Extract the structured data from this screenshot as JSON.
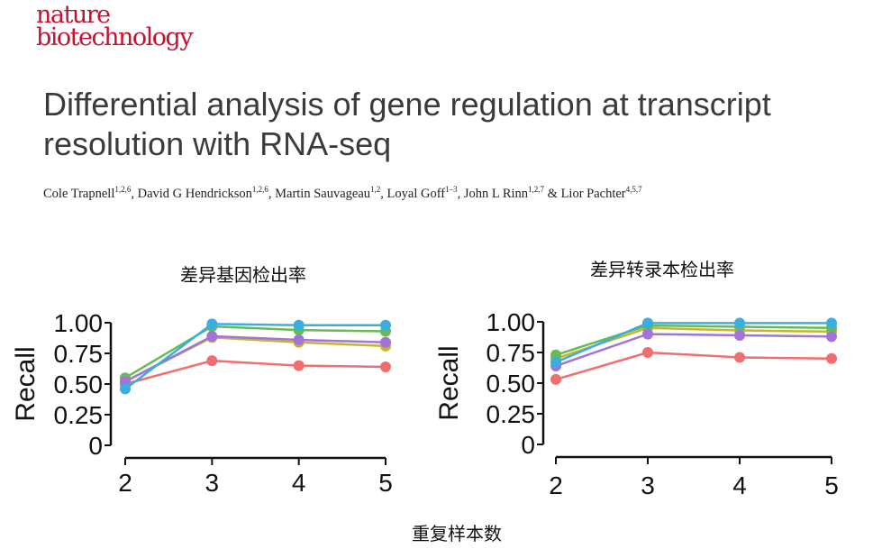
{
  "journal": {
    "line1": "nature",
    "line2": "biotechnology"
  },
  "paper": {
    "title_line1": "Differential analysis of gene regulation at transcript",
    "title_line2": "resolution with RNA-seq",
    "authors": [
      {
        "name": "Cole Trapnell",
        "sup": "1,2,6"
      },
      {
        "name": "David G Hendrickson",
        "sup": "1,2,6"
      },
      {
        "name": "Martin Sauvageau",
        "sup": "1,2"
      },
      {
        "name": "Loyal Goff",
        "sup": "1–3"
      },
      {
        "name": "John L Rinn",
        "sup": "1,2,7"
      },
      {
        "name": "Lior Pachter",
        "sup": "4,5,7"
      }
    ]
  },
  "shared_xlabel": "重复样本数",
  "chart_data": [
    {
      "type": "line",
      "title": "差异基因检出率",
      "xlabel": "",
      "ylabel": "Recall",
      "x": [
        2,
        3,
        4,
        5
      ],
      "ylim": [
        0,
        1
      ],
      "yticks": [
        "0",
        "0.25",
        "0.50",
        "0.75",
        "1.00"
      ],
      "grid": false,
      "series": [
        {
          "color": "#f06e6e",
          "values": [
            0.5,
            0.69,
            0.65,
            0.64
          ]
        },
        {
          "color": "#c7b52a",
          "values": [
            0.52,
            0.88,
            0.84,
            0.81
          ]
        },
        {
          "color": "#66bb55",
          "values": [
            0.55,
            0.97,
            0.94,
            0.93
          ]
        },
        {
          "color": "#a374d8",
          "values": [
            0.52,
            0.89,
            0.86,
            0.84
          ]
        },
        {
          "color": "#3aaee0",
          "values": [
            0.46,
            0.99,
            0.98,
            0.98
          ]
        }
      ]
    },
    {
      "type": "line",
      "title": "差异转录本检出率",
      "xlabel": "",
      "ylabel": "Recall",
      "x": [
        2,
        3,
        4,
        5
      ],
      "ylim": [
        0,
        1
      ],
      "yticks": [
        "0",
        "0.25",
        "0.50",
        "0.75",
        "1.00"
      ],
      "grid": false,
      "series": [
        {
          "color": "#f06e6e",
          "values": [
            0.53,
            0.75,
            0.71,
            0.7
          ]
        },
        {
          "color": "#c7b52a",
          "values": [
            0.7,
            0.95,
            0.93,
            0.92
          ]
        },
        {
          "color": "#66bb55",
          "values": [
            0.73,
            0.97,
            0.96,
            0.95
          ]
        },
        {
          "color": "#a374d8",
          "values": [
            0.64,
            0.9,
            0.89,
            0.88
          ]
        },
        {
          "color": "#3aaee0",
          "values": [
            0.67,
            0.99,
            0.99,
            0.99
          ]
        }
      ]
    }
  ]
}
